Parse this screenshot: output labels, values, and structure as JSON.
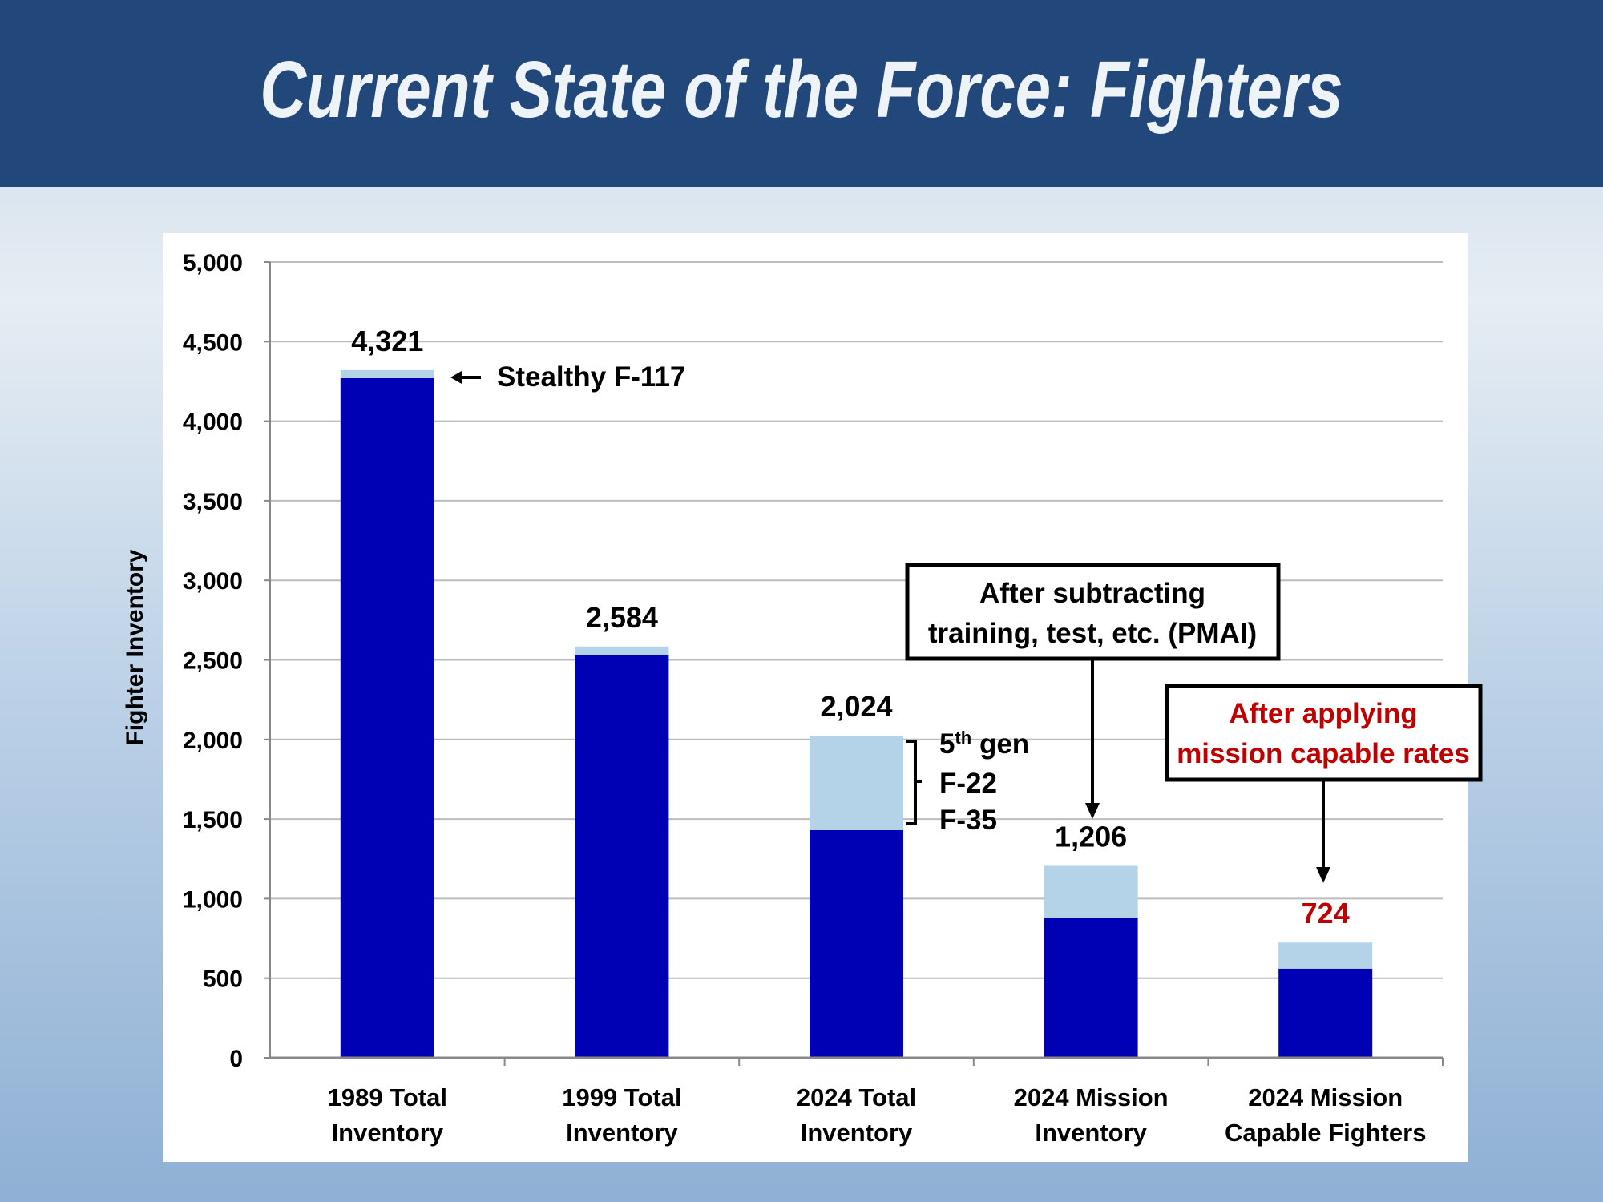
{
  "header": {
    "title": "Current State of the Force: Fighters"
  },
  "chart_data": {
    "type": "bar",
    "stacked": true,
    "title": "Current State of the Force: Fighters",
    "xlabel": "",
    "ylabel": "Fighter Inventory",
    "ylim": [
      0,
      5000
    ],
    "yticks": [
      0,
      500,
      1000,
      1500,
      2000,
      2500,
      3000,
      3500,
      4000,
      4500,
      5000
    ],
    "ytick_labels": [
      "0",
      "500",
      "1,000",
      "1,500",
      "2,000",
      "2,500",
      "3,000",
      "3,500",
      "4,000",
      "4,500",
      "5,000"
    ],
    "grid": true,
    "categories": [
      [
        "1989 Total",
        "Inventory"
      ],
      [
        "1999 Total",
        "Inventory"
      ],
      [
        "2024 Total",
        "Inventory"
      ],
      [
        "2024 Mission",
        "Inventory"
      ],
      [
        "2024 Mission",
        "Capable Fighters"
      ]
    ],
    "series": [
      {
        "name": "Legacy fighters",
        "color": "#0000b4",
        "values": [
          4270,
          2530,
          1430,
          880,
          560
        ]
      },
      {
        "name": "Stealth / 5th gen",
        "color": "#b4d3e8",
        "values": [
          51,
          54,
          594,
          326,
          164
        ]
      }
    ],
    "totals": [
      4321,
      2584,
      2024,
      1206,
      724
    ],
    "total_labels": [
      "4,321",
      "2,584",
      "2,024",
      "1,206",
      "724"
    ],
    "total_label_colors": [
      "#000000",
      "#000000",
      "#000000",
      "#000000",
      "#c00000"
    ],
    "annotations": {
      "f117": "Stealthy F-117",
      "fifth_gen": {
        "line1": "5",
        "sup": "th",
        "line1b": " gen",
        "line2": "F-22",
        "line3": "F-35"
      },
      "pmai_box": [
        "After subtracting",
        "training, test, etc. (PMAI)"
      ],
      "mc_box": [
        "After applying",
        "mission capable rates"
      ],
      "mc_box_color": "#c00000"
    }
  }
}
